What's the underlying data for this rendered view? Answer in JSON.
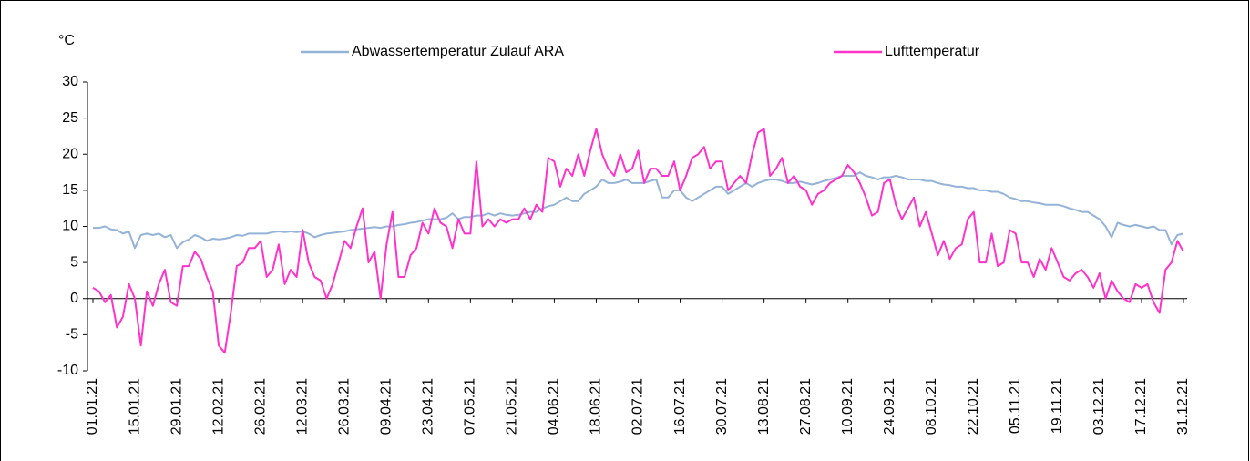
{
  "chart_data": {
    "type": "line",
    "y_label": "°C",
    "categories": [
      "01.01.21",
      null,
      null,
      null,
      null,
      null,
      null,
      "15.01.21",
      null,
      null,
      null,
      null,
      null,
      null,
      "29.01.21",
      null,
      null,
      null,
      null,
      null,
      null,
      "12.02.21",
      null,
      null,
      null,
      null,
      null,
      null,
      "26.02.21",
      null,
      null,
      null,
      null,
      null,
      null,
      "12.03.21",
      null,
      null,
      null,
      null,
      null,
      null,
      "26.03.21",
      null,
      null,
      null,
      null,
      null,
      null,
      "09.04.21",
      null,
      null,
      null,
      null,
      null,
      null,
      "23.04.21",
      null,
      null,
      null,
      null,
      null,
      null,
      "07.05.21",
      null,
      null,
      null,
      null,
      null,
      null,
      "21.05.21",
      null,
      null,
      null,
      null,
      null,
      null,
      "04.06.21",
      null,
      null,
      null,
      null,
      null,
      null,
      "18.06.21",
      null,
      null,
      null,
      null,
      null,
      null,
      "02.07.21",
      null,
      null,
      null,
      null,
      null,
      null,
      "16.07.21",
      null,
      null,
      null,
      null,
      null,
      null,
      "30.07.21",
      null,
      null,
      null,
      null,
      null,
      null,
      "13.08.21",
      null,
      null,
      null,
      null,
      null,
      null,
      "27.08.21",
      null,
      null,
      null,
      null,
      null,
      null,
      "10.09.21",
      null,
      null,
      null,
      null,
      null,
      null,
      "24.09.21",
      null,
      null,
      null,
      null,
      null,
      null,
      "08.10.21",
      null,
      null,
      null,
      null,
      null,
      null,
      "22.10.21",
      null,
      null,
      null,
      null,
      null,
      null,
      "05.11.21",
      null,
      null,
      null,
      null,
      null,
      null,
      "19.11.21",
      null,
      null,
      null,
      null,
      null,
      null,
      "03.12.21",
      null,
      null,
      null,
      null,
      null,
      null,
      "17.12.21",
      null,
      null,
      null,
      null,
      null,
      null,
      "31.12.21"
    ],
    "series": [
      {
        "name": "Abwassertemperatur Zulauf ARA",
        "color": "#95b3d7",
        "values": [
          9.8,
          9.8,
          10,
          9.6,
          9.5,
          9,
          9.3,
          7,
          8.8,
          9,
          8.8,
          9,
          8.5,
          8.8,
          7,
          7.8,
          8.2,
          8.8,
          8.5,
          8,
          8.3,
          8.2,
          8.3,
          8.5,
          8.8,
          8.7,
          9,
          9,
          9,
          9,
          9.2,
          9.3,
          9.2,
          9.3,
          9.2,
          9.3,
          9,
          8.5,
          8.8,
          9,
          9.1,
          9.2,
          9.3,
          9.5,
          9.6,
          9.7,
          9.8,
          9.9,
          9.8,
          10,
          10,
          10.2,
          10.3,
          10.5,
          10.6,
          10.8,
          11,
          11,
          11,
          11.2,
          11.8,
          11,
          11.3,
          11.3,
          11.5,
          11.5,
          11.8,
          11.5,
          11.8,
          11.6,
          11.5,
          11.6,
          11.8,
          12,
          12,
          12.5,
          12.8,
          13,
          13.5,
          14,
          13.5,
          13.5,
          14.5,
          15,
          15.5,
          16.5,
          16,
          16,
          16.2,
          16.5,
          16,
          16,
          16,
          16.3,
          16.5,
          14,
          14,
          15,
          15,
          14,
          13.5,
          14,
          14.5,
          15,
          15.5,
          15.5,
          14.5,
          15,
          15.5,
          16,
          15.5,
          16,
          16.3,
          16.5,
          16.5,
          16.3,
          16,
          16,
          16.2,
          16,
          15.8,
          16,
          16.3,
          16.5,
          16.7,
          17,
          17,
          17,
          17.5,
          17,
          16.8,
          16.5,
          16.8,
          16.8,
          17,
          16.8,
          16.5,
          16.5,
          16.5,
          16.3,
          16.3,
          16,
          15.8,
          15.7,
          15.5,
          15.5,
          15.3,
          15.3,
          15,
          15,
          14.8,
          14.8,
          14.5,
          14,
          13.8,
          13.5,
          13.5,
          13.3,
          13.2,
          13,
          13,
          13,
          12.8,
          12.5,
          12.3,
          12,
          12,
          11.5,
          11,
          10,
          8.5,
          10.5,
          10.2,
          10,
          10.2,
          10,
          9.8,
          10,
          9.5,
          9.5,
          7.5,
          8.8,
          9
        ]
      },
      {
        "name": "Lufttemperatur",
        "color": "#ff33cc",
        "values": [
          1.5,
          1,
          -0.5,
          0.5,
          -4,
          -2.5,
          2,
          0,
          -6.5,
          1,
          -1,
          2,
          4,
          -0.5,
          -1,
          4.5,
          4.5,
          6.5,
          5.5,
          3,
          1,
          -6.5,
          -7.5,
          -2,
          4.5,
          5,
          7,
          7,
          8,
          3,
          4,
          7.5,
          2,
          4,
          3,
          9.5,
          5,
          3,
          2.5,
          0,
          2,
          5,
          8,
          7,
          10,
          12.5,
          5,
          6.5,
          0,
          7.5,
          12,
          3,
          3,
          6,
          7,
          10.5,
          9,
          12.5,
          10.5,
          10,
          7,
          11,
          9,
          9,
          19,
          10,
          11,
          10,
          11,
          10.5,
          11,
          11,
          12.5,
          11,
          13,
          12,
          19.5,
          19,
          15.5,
          18,
          17,
          20,
          17,
          20.5,
          23.5,
          20,
          18,
          17,
          20,
          17.5,
          18,
          20.5,
          16,
          18,
          18,
          17,
          17,
          19,
          15,
          17,
          19.5,
          20,
          21,
          18,
          19,
          19,
          15,
          16,
          17,
          16,
          20,
          23,
          23.5,
          17,
          18,
          19.5,
          16,
          17,
          15.5,
          15,
          13,
          14.5,
          15,
          16,
          16.5,
          17,
          18.5,
          17.5,
          16,
          14,
          11.5,
          12,
          16,
          16.5,
          13,
          11,
          12.5,
          14,
          10,
          12,
          9,
          6,
          8,
          5.5,
          7,
          7.5,
          11,
          12,
          5,
          5,
          9,
          4.5,
          5,
          9.5,
          9,
          5,
          5,
          3,
          5.5,
          4,
          7,
          5,
          3,
          2.5,
          3.5,
          4,
          3,
          1.5,
          3.5,
          0,
          2.5,
          1,
          0,
          -0.5,
          2,
          1.5,
          2,
          -0.5,
          -2,
          4,
          5,
          8,
          6.5
        ]
      }
    ],
    "ylim": [
      -10,
      30
    ],
    "yticks": [
      -10,
      -5,
      0,
      5,
      10,
      15,
      20,
      25,
      30
    ]
  }
}
